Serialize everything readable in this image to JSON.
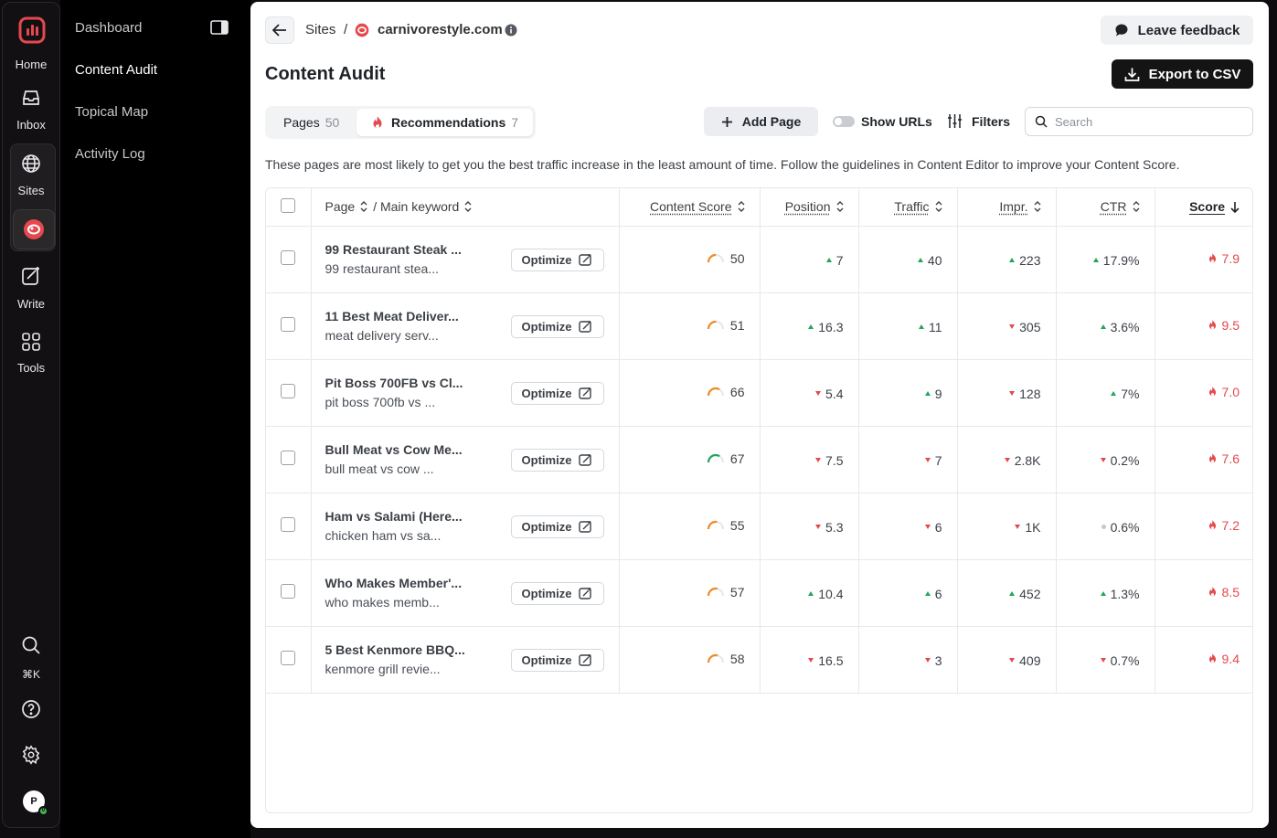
{
  "rail": {
    "home_label": "Home",
    "inbox_label": "Inbox",
    "sites_label": "Sites",
    "write_label": "Write",
    "tools_label": "Tools",
    "search_shortcut": "⌘K",
    "avatar_initial": "P",
    "avatar_badge": "0"
  },
  "sidebar": {
    "items": [
      {
        "label": "Dashboard"
      },
      {
        "label": "Content Audit"
      },
      {
        "label": "Topical Map"
      },
      {
        "label": "Activity Log"
      }
    ]
  },
  "header": {
    "breadcrumb_sites": "Sites",
    "breadcrumb_sep": "/",
    "site_name": "carnivorestyle.com",
    "feedback_label": "Leave feedback",
    "title": "Content Audit",
    "export_label": "Export to CSV"
  },
  "tabs": [
    {
      "label": "Pages",
      "count": "50"
    },
    {
      "label": "Recommendations",
      "count": "7"
    }
  ],
  "toolbar": {
    "add_page_label": "Add Page",
    "show_urls_label": "Show URLs",
    "filters_label": "Filters",
    "search_placeholder": "Search"
  },
  "description": "These pages are most likely to get you the best traffic increase in the least amount of time. Follow the guidelines in Content Editor to improve your Content Score.",
  "table": {
    "headers": {
      "page": "Page",
      "keyword": "/ Main keyword",
      "content_score": "Content Score",
      "position": "Position",
      "traffic": "Traffic",
      "impr": "Impr.",
      "ctr": "CTR",
      "score": "Score"
    },
    "optimize_label": "Optimize",
    "rows": [
      {
        "title": "99 Restaurant Steak ...",
        "keyword": "99 restaurant stea...",
        "content_score": "50",
        "position": "7",
        "position_dir": "up",
        "traffic": "40",
        "traffic_dir": "up",
        "impr": "223",
        "impr_dir": "up",
        "ctr": "17.9%",
        "ctr_dir": "up",
        "score": "7.9"
      },
      {
        "title": "11 Best Meat Deliver...",
        "keyword": "meat delivery serv...",
        "content_score": "51",
        "position": "16.3",
        "position_dir": "up",
        "traffic": "11",
        "traffic_dir": "up",
        "impr": "305",
        "impr_dir": "down",
        "ctr": "3.6%",
        "ctr_dir": "up",
        "score": "9.5"
      },
      {
        "title": "Pit Boss 700FB vs Cl...",
        "keyword": "pit boss 700fb vs ...",
        "content_score": "66",
        "position": "5.4",
        "position_dir": "down",
        "traffic": "9",
        "traffic_dir": "up",
        "impr": "128",
        "impr_dir": "down",
        "ctr": "7%",
        "ctr_dir": "up",
        "score": "7.0"
      },
      {
        "title": "Bull Meat vs Cow Me...",
        "keyword": "bull meat vs cow ...",
        "content_score": "67",
        "position": "7.5",
        "position_dir": "down",
        "traffic": "7",
        "traffic_dir": "down",
        "impr": "2.8K",
        "impr_dir": "down",
        "ctr": "0.2%",
        "ctr_dir": "down",
        "score": "7.6"
      },
      {
        "title": "Ham vs Salami (Here...",
        "keyword": "chicken ham vs sa...",
        "content_score": "55",
        "position": "5.3",
        "position_dir": "down",
        "traffic": "6",
        "traffic_dir": "down",
        "impr": "1K",
        "impr_dir": "down",
        "ctr": "0.6%",
        "ctr_dir": "flat",
        "score": "7.2"
      },
      {
        "title": "Who Makes Member'...",
        "keyword": "who makes memb...",
        "content_score": "57",
        "position": "10.4",
        "position_dir": "up",
        "traffic": "6",
        "traffic_dir": "up",
        "impr": "452",
        "impr_dir": "up",
        "ctr": "1.3%",
        "ctr_dir": "up",
        "score": "8.5"
      },
      {
        "title": "5 Best Kenmore BBQ...",
        "keyword": "kenmore grill revie...",
        "content_score": "58",
        "position": "16.5",
        "position_dir": "down",
        "traffic": "3",
        "traffic_dir": "down",
        "impr": "409",
        "impr_dir": "down",
        "ctr": "0.7%",
        "ctr_dir": "down",
        "score": "9.4"
      }
    ]
  },
  "colors": {
    "accent_red": "#e5484d",
    "up_green": "#22a45d",
    "gauge_orange": "#f08a24",
    "gauge_green": "#22a45d"
  }
}
